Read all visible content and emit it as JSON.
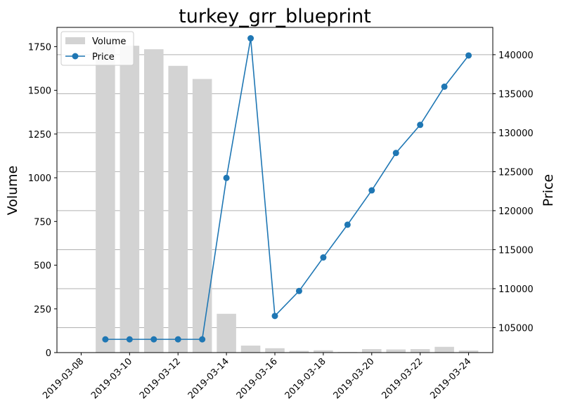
{
  "chart_data": {
    "type": "bar",
    "title": "turkey_grr_blueprint",
    "xlabel": "",
    "ylabel": "Volume",
    "y2label": "Price",
    "x_type": "date",
    "xlim": [
      "2019-03-07",
      "2019-03-25"
    ],
    "ylim": [
      0,
      1860
    ],
    "y2lim": [
      101800,
      143500
    ],
    "x_ticks": [
      "2019-03-08",
      "2019-03-10",
      "2019-03-12",
      "2019-03-14",
      "2019-03-16",
      "2019-03-18",
      "2019-03-20",
      "2019-03-22",
      "2019-03-24"
    ],
    "y_ticks": [
      0,
      250,
      500,
      750,
      1000,
      1250,
      1500,
      1750
    ],
    "y2_ticks": [
      105000,
      110000,
      115000,
      120000,
      125000,
      130000,
      135000,
      140000
    ],
    "grid": "horizontal lines on price axis",
    "legend_position": "upper-left",
    "x": [
      "2019-03-09",
      "2019-03-10",
      "2019-03-11",
      "2019-03-12",
      "2019-03-13",
      "2019-03-14",
      "2019-03-15",
      "2019-03-16",
      "2019-03-17",
      "2019-03-18",
      "2019-03-19",
      "2019-03-20",
      "2019-03-21",
      "2019-03-22",
      "2019-03-23",
      "2019-03-24"
    ],
    "series": [
      {
        "name": "Volume",
        "kind": "bar",
        "axis": "left",
        "color": "#d3d3d3",
        "values": [
          1760,
          1755,
          1735,
          1640,
          1565,
          222,
          40,
          25,
          10,
          13,
          3,
          20,
          18,
          20,
          33,
          12
        ]
      },
      {
        "name": "Price",
        "kind": "line",
        "axis": "right",
        "color": "#1f77b4",
        "marker": "circle",
        "values": [
          103500,
          103500,
          103500,
          103500,
          103500,
          124200,
          142100,
          106500,
          109700,
          114000,
          118200,
          122600,
          127400,
          131000,
          135900,
          139900
        ]
      }
    ]
  }
}
